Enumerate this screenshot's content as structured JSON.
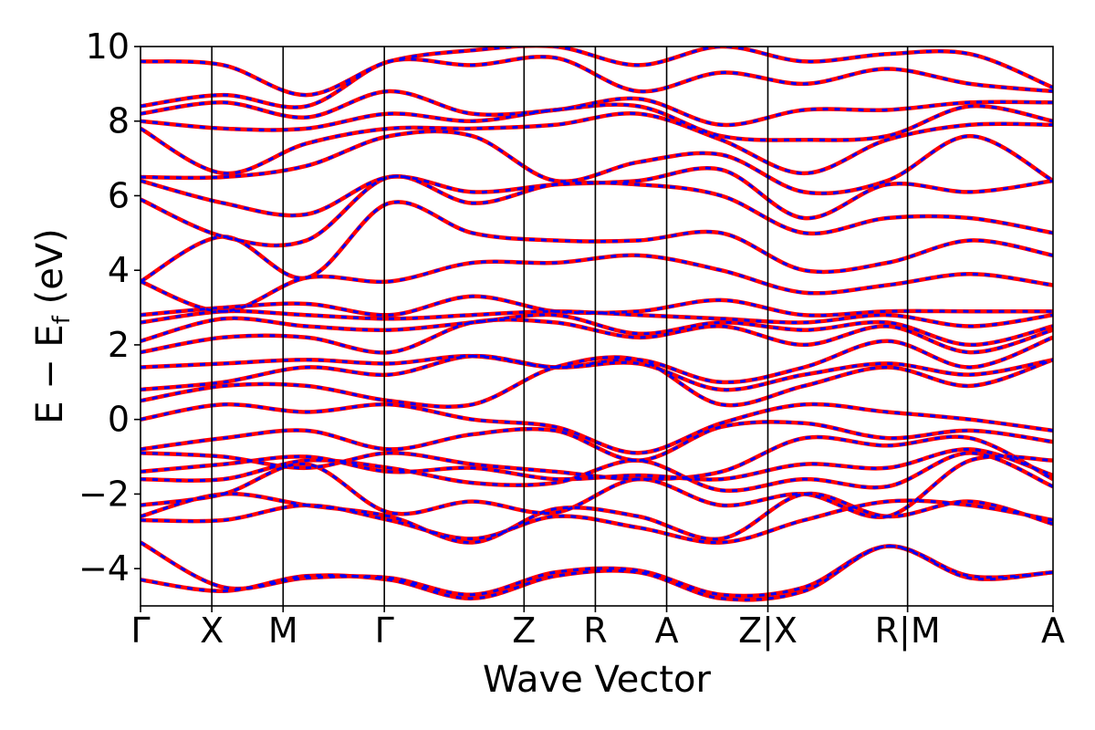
{
  "chart_data": {
    "type": "line",
    "title": "",
    "xlabel": "Wave Vector",
    "ylabel_parts": {
      "main": "E − E",
      "sub": "f",
      "unit": " (eV)"
    },
    "ylim": [
      -5,
      10
    ],
    "yticks": [
      -4,
      -2,
      0,
      2,
      4,
      6,
      8,
      10
    ],
    "ytick_labels": [
      "−4",
      "−2",
      "0",
      "2",
      "4",
      "6",
      "8",
      "10"
    ],
    "xlim": [
      0,
      12.8
    ],
    "kpoints": [
      {
        "x": 0.0,
        "label": "Γ"
      },
      {
        "x": 1.0,
        "label": "X"
      },
      {
        "x": 2.0,
        "label": "M"
      },
      {
        "x": 3.42,
        "label": "Γ"
      },
      {
        "x": 5.38,
        "label": "Z"
      },
      {
        "x": 6.38,
        "label": "R"
      },
      {
        "x": 7.38,
        "label": "A"
      },
      {
        "x": 8.8,
        "label": "Z|X"
      },
      {
        "x": 10.76,
        "label": "R|M"
      },
      {
        "x": 12.8,
        "label": "A"
      }
    ],
    "series_styles": [
      {
        "color": "#ff0000",
        "style": "solid",
        "width": 4.5
      },
      {
        "color": "#0000ff",
        "style": "dashed",
        "width": 3
      }
    ],
    "bands": [
      [
        -4.3,
        -4.6,
        -4.2,
        -4.3,
        -4.8,
        -4.2,
        -4.1,
        -4.8,
        -4.6,
        -3.4,
        -4.2,
        -4.1
      ],
      [
        -3.3,
        -4.5,
        -4.25,
        -4.25,
        -4.7,
        -4.1,
        -4.05,
        -4.7,
        -4.5,
        -3.4,
        -4.25,
        -4.1
      ],
      [
        -2.7,
        -2.7,
        -2.3,
        -2.7,
        -3.2,
        -2.6,
        -2.9,
        -3.3,
        -2.7,
        -2.2,
        -2.3,
        -2.7
      ],
      [
        -2.6,
        -2.0,
        -2.3,
        -2.6,
        -3.3,
        -2.4,
        -2.6,
        -3.2,
        -2.0,
        -2.6,
        -2.2,
        -2.8
      ],
      [
        -2.3,
        -2.0,
        -1.2,
        -2.5,
        -2.2,
        -2.5,
        -1.6,
        -2.3,
        -2.0,
        -2.6,
        -1.1,
        -1.1
      ],
      [
        -1.6,
        -1.6,
        -1.1,
        -1.3,
        -1.7,
        -1.7,
        -1.1,
        -1.9,
        -1.6,
        -1.8,
        -0.9,
        -1.8
      ],
      [
        -1.4,
        -1.2,
        -1.0,
        -1.4,
        -1.3,
        -1.6,
        -1.5,
        -1.6,
        -1.2,
        -1.3,
        -0.8,
        -1.5
      ],
      [
        -0.9,
        -1.0,
        -1.3,
        -0.9,
        -1.2,
        -1.4,
        -1.6,
        -1.4,
        -0.5,
        -0.7,
        -0.5,
        -1.6
      ],
      [
        -0.8,
        -0.5,
        -0.3,
        -0.8,
        -0.4,
        -0.3,
        -1.1,
        -0.2,
        -0.1,
        -0.5,
        -0.3,
        -0.6
      ],
      [
        0.0,
        0.4,
        0.2,
        0.4,
        0.0,
        -0.2,
        -0.9,
        -0.1,
        0.4,
        0.2,
        0.0,
        -0.3
      ],
      [
        0.5,
        0.9,
        0.9,
        0.5,
        0.4,
        1.4,
        1.6,
        0.4,
        0.9,
        1.4,
        0.9,
        1.6
      ],
      [
        0.8,
        1.0,
        1.4,
        1.2,
        1.7,
        1.4,
        1.5,
        0.8,
        1.2,
        1.5,
        1.2,
        1.6
      ],
      [
        1.4,
        1.5,
        1.6,
        1.5,
        1.7,
        1.4,
        1.6,
        1.0,
        1.4,
        2.1,
        1.4,
        2.2
      ],
      [
        1.8,
        2.2,
        2.2,
        1.8,
        2.6,
        2.6,
        2.2,
        2.5,
        2.0,
        2.5,
        1.8,
        2.4
      ],
      [
        2.1,
        2.7,
        2.5,
        2.4,
        2.6,
        2.8,
        2.3,
        2.6,
        2.4,
        2.6,
        2.0,
        2.5
      ],
      [
        2.6,
        2.9,
        2.8,
        2.7,
        2.8,
        2.9,
        2.8,
        2.7,
        2.6,
        2.8,
        2.5,
        2.8
      ],
      [
        2.8,
        3.0,
        3.1,
        2.8,
        3.3,
        2.9,
        2.9,
        3.2,
        2.8,
        2.9,
        2.9,
        2.9
      ],
      [
        3.7,
        2.9,
        3.8,
        3.7,
        4.2,
        4.2,
        4.4,
        4.0,
        3.4,
        3.6,
        3.9,
        3.6
      ],
      [
        3.7,
        4.9,
        3.8,
        5.8,
        5.0,
        4.8,
        4.8,
        5.0,
        4.0,
        4.2,
        4.8,
        4.4
      ],
      [
        5.9,
        4.9,
        4.8,
        6.5,
        5.8,
        6.3,
        6.3,
        6.0,
        5.0,
        5.4,
        5.4,
        5.0
      ],
      [
        6.4,
        5.8,
        5.5,
        6.5,
        6.1,
        6.3,
        6.4,
        6.7,
        5.4,
        6.3,
        6.1,
        6.4
      ],
      [
        6.5,
        6.5,
        6.8,
        7.6,
        7.6,
        6.4,
        6.9,
        7.1,
        6.1,
        6.4,
        7.6,
        6.4
      ],
      [
        7.8,
        6.6,
        7.4,
        7.8,
        7.8,
        7.9,
        8.2,
        7.5,
        6.6,
        7.5,
        7.9,
        7.9
      ],
      [
        8.0,
        7.8,
        7.8,
        8.2,
        8.0,
        8.3,
        8.4,
        7.6,
        7.5,
        7.6,
        8.4,
        8.0
      ],
      [
        8.2,
        8.5,
        8.1,
        8.8,
        8.2,
        8.3,
        8.6,
        7.9,
        8.3,
        8.3,
        8.5,
        8.5
      ],
      [
        8.4,
        8.7,
        8.4,
        9.6,
        9.5,
        9.7,
        8.8,
        9.3,
        9.0,
        9.4,
        9.0,
        8.8
      ],
      [
        9.6,
        9.5,
        8.7,
        9.6,
        9.9,
        10.0,
        9.5,
        10.0,
        9.6,
        9.8,
        9.8,
        8.9
      ]
    ]
  }
}
